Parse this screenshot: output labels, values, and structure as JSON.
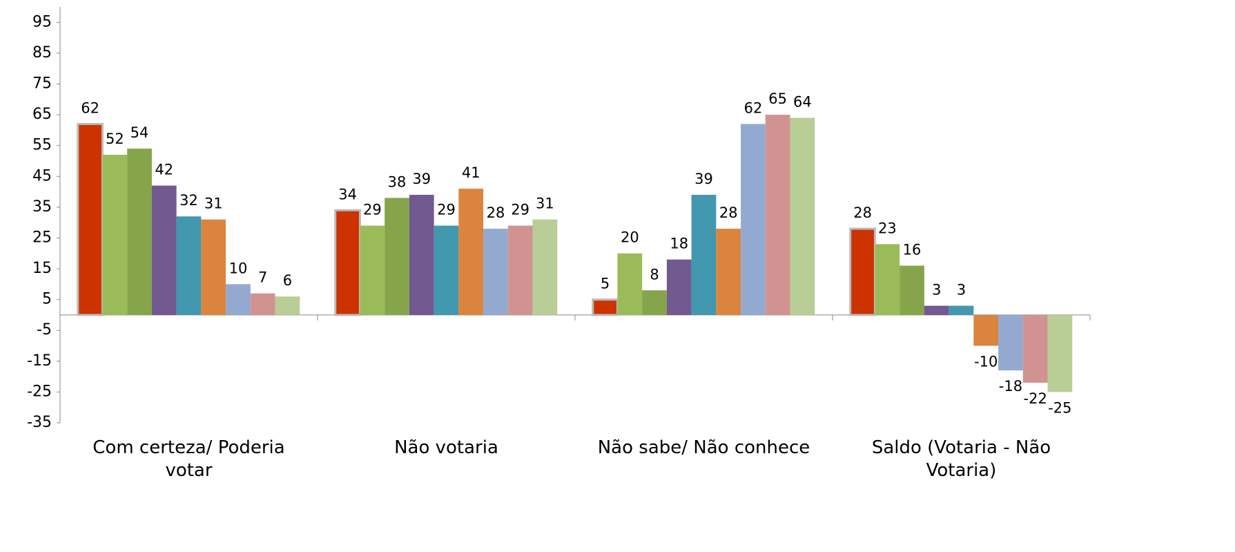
{
  "chart_data": {
    "type": "bar",
    "categories": [
      "Com certeza/ Poderia votar",
      "Não votaria",
      "Não sabe/ Não conhece",
      "Saldo (Votaria - Não Votaria)"
    ],
    "series": [
      {
        "color": "#cc3300",
        "values": [
          62,
          34,
          5,
          28
        ]
      },
      {
        "color": "#9bbb59",
        "values": [
          52,
          29,
          20,
          23
        ]
      },
      {
        "color": "#86a44a",
        "values": [
          54,
          38,
          8,
          16
        ]
      },
      {
        "color": "#725990",
        "values": [
          42,
          39,
          18,
          3
        ]
      },
      {
        "color": "#4298af",
        "values": [
          32,
          29,
          39,
          3
        ]
      },
      {
        "color": "#db843d",
        "values": [
          31,
          41,
          28,
          -10
        ]
      },
      {
        "color": "#93a9cf",
        "values": [
          10,
          28,
          62,
          -18
        ]
      },
      {
        "color": "#d19392",
        "values": [
          7,
          29,
          65,
          -22
        ]
      },
      {
        "color": "#b9cd96",
        "values": [
          6,
          31,
          64,
          -25
        ]
      }
    ],
    "ylim": [
      -35,
      100
    ],
    "yticks": [
      -35,
      -25,
      -15,
      -5,
      5,
      15,
      25,
      35,
      45,
      55,
      65,
      75,
      85,
      95
    ]
  }
}
